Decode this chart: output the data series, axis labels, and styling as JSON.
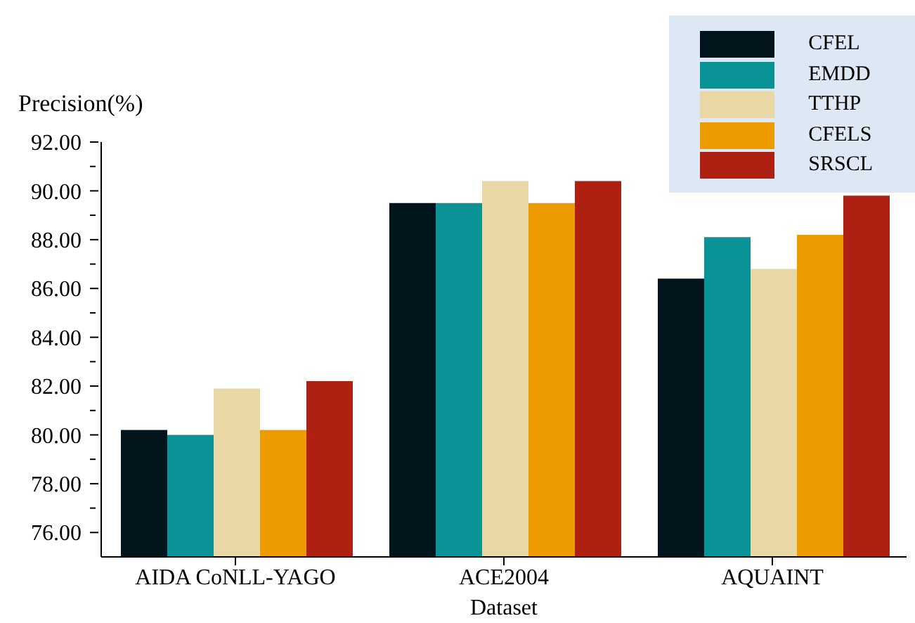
{
  "chart_data": {
    "type": "bar",
    "xlabel": "Dataset",
    "ylabel": "Precision(%)",
    "categories": [
      "AIDA CoNLL-YAGO",
      "ACE2004",
      "AQUAINT"
    ],
    "series": [
      {
        "name": "CFEL",
        "color": "#02141c",
        "values": [
          80.2,
          89.5,
          86.4
        ]
      },
      {
        "name": "EMDD",
        "color": "#0a9396",
        "values": [
          80.0,
          89.5,
          88.1
        ]
      },
      {
        "name": "TTHP",
        "color": "#e9d8a6",
        "values": [
          81.9,
          90.4,
          86.8
        ]
      },
      {
        "name": "CFELS",
        "color": "#ee9b00",
        "values": [
          80.2,
          89.5,
          88.2
        ]
      },
      {
        "name": "SRSCL",
        "color": "#ae2012",
        "values": [
          82.2,
          90.4,
          89.8
        ]
      }
    ],
    "ylim": [
      75,
      92
    ],
    "yticks": [
      {
        "value": 76,
        "label": "76.00"
      },
      {
        "value": 77,
        "label": null
      },
      {
        "value": 78,
        "label": "78.00"
      },
      {
        "value": 79,
        "label": null
      },
      {
        "value": 80,
        "label": "80.00"
      },
      {
        "value": 81,
        "label": null
      },
      {
        "value": 82,
        "label": "82.00"
      },
      {
        "value": 83,
        "label": null
      },
      {
        "value": 84,
        "label": "84.00"
      },
      {
        "value": 85,
        "label": null
      },
      {
        "value": 86,
        "label": "86.00"
      },
      {
        "value": 87,
        "label": null
      },
      {
        "value": 88,
        "label": "88.00"
      },
      {
        "value": 89,
        "label": null
      },
      {
        "value": 90,
        "label": "90.00"
      },
      {
        "value": 91,
        "label": null
      },
      {
        "value": 92,
        "label": "92.00"
      }
    ],
    "grid": false,
    "legend": "top right"
  }
}
